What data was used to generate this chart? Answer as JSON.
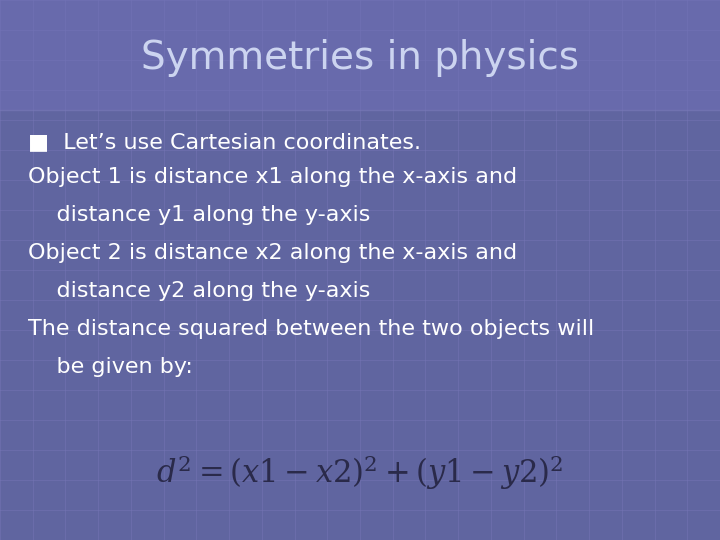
{
  "title": "Symmetries in physics",
  "title_color": "#ccd4f0",
  "title_fontsize": 28,
  "bg_color": "#6065a0",
  "grid_line_color": "#7878b8",
  "grid_fill_color": "#6a70b0",
  "bullet_text": "■  Let’s use Cartesian coordinates.",
  "body_lines": [
    "Object 1 is distance x1 along the x-axis and",
    "    distance y1 along the y-axis",
    "Object 2 is distance x2 along the x-axis and",
    "    distance y2 along the y-axis",
    "The distance squared between the two objects will",
    "    be given by:"
  ],
  "text_color": "#ffffff",
  "body_fontsize": 16,
  "formula_color": "#2a2a4a",
  "formula_fontsize": 22,
  "title_bar_color": "#7070b8"
}
